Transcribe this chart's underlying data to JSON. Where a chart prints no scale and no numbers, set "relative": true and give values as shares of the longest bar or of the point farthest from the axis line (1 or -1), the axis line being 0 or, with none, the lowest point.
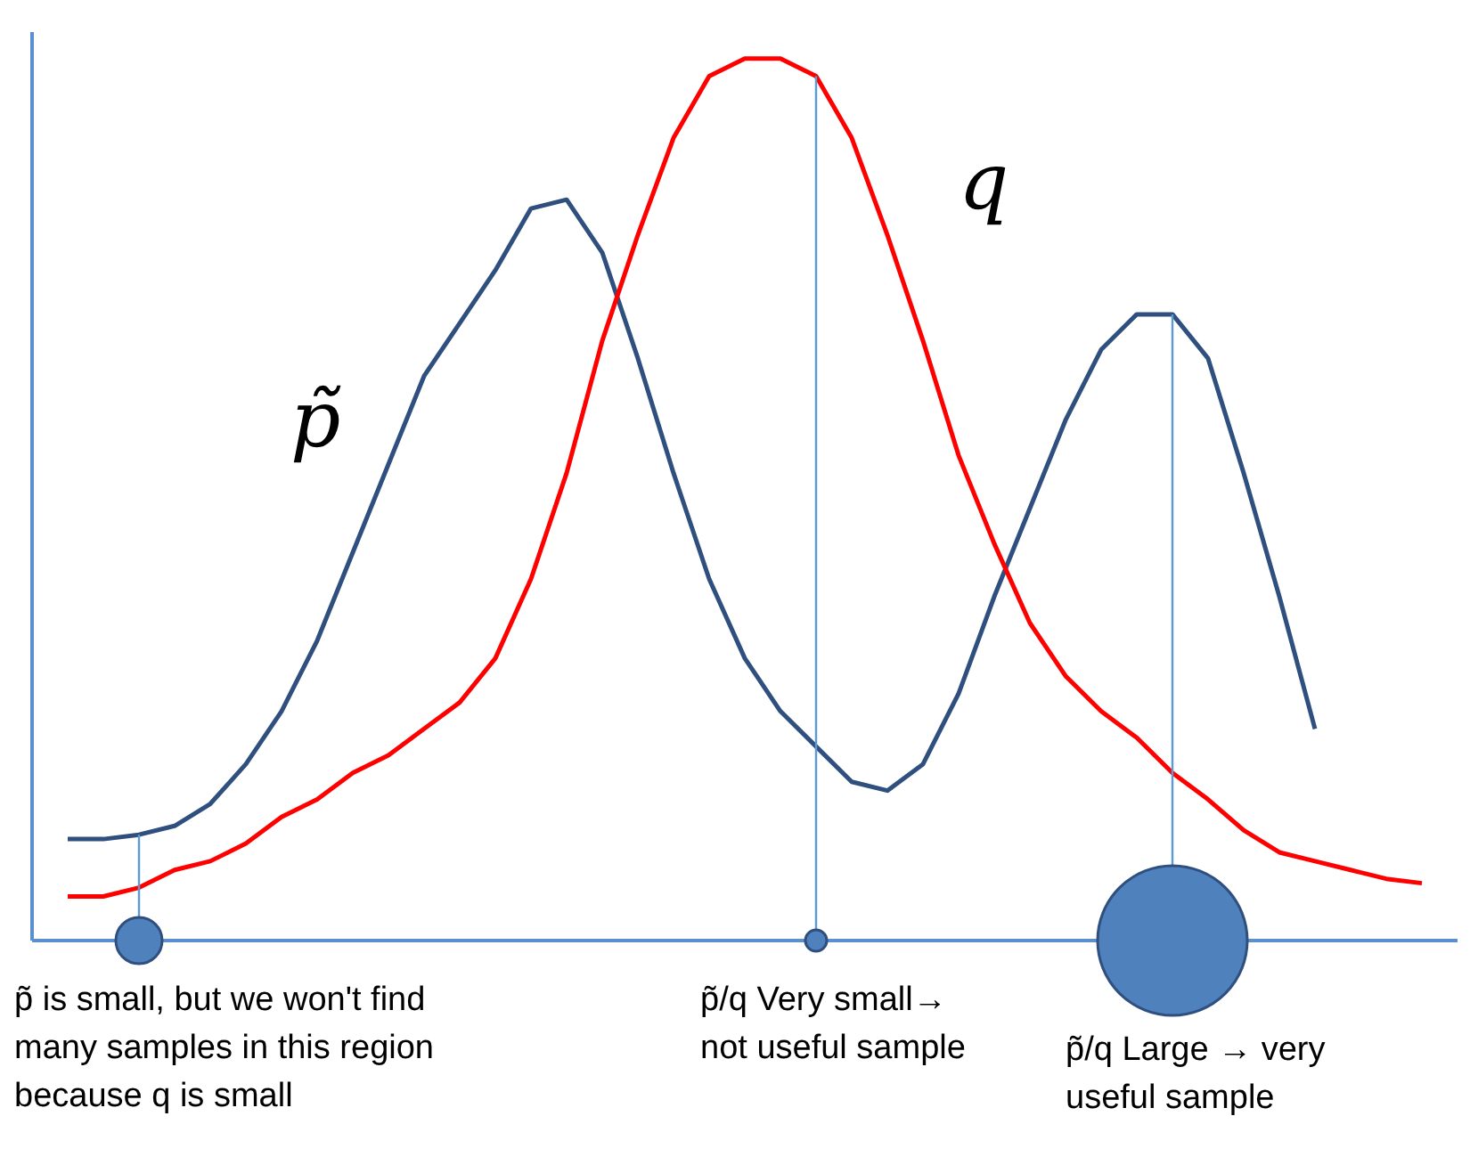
{
  "chart_data": {
    "type": "line",
    "relative": true,
    "legend": false,
    "grid": false,
    "marker": "none",
    "categories": [
      null,
      null,
      null,
      null,
      null,
      null,
      null,
      null,
      null,
      null,
      null,
      null,
      null,
      null,
      null,
      null,
      null,
      null,
      null,
      null,
      null,
      null,
      null,
      null,
      null,
      null,
      null,
      null,
      null,
      null,
      null,
      null,
      null,
      null,
      null,
      null,
      null,
      null,
      null,
      null,
      null
    ],
    "series": [
      {
        "name": "p̃",
        "color": "#2f4f7f",
        "values": [
          null,
          0.115,
          0.115,
          0.12,
          0.13,
          0.155,
          0.2,
          0.26,
          0.34,
          0.44,
          0.54,
          0.64,
          0.7,
          0.76,
          0.83,
          0.84,
          0.78,
          0.66,
          0.53,
          0.41,
          0.32,
          0.26,
          0.22,
          0.18,
          0.17,
          0.2,
          0.28,
          0.39,
          0.49,
          0.59,
          0.67,
          0.71,
          0.71,
          0.66,
          0.53,
          0.39,
          0.24,
          null,
          null,
          null,
          null
        ]
      },
      {
        "name": "q",
        "color": "#ff0000",
        "values": [
          null,
          0.05,
          0.05,
          0.06,
          0.08,
          0.09,
          0.11,
          0.14,
          0.16,
          0.19,
          0.21,
          0.24,
          0.27,
          0.32,
          0.41,
          0.53,
          0.68,
          0.8,
          0.91,
          0.98,
          1,
          1,
          0.98,
          0.91,
          0.8,
          0.68,
          0.55,
          0.45,
          0.36,
          0.3,
          0.26,
          0.23,
          0.19,
          0.16,
          0.125,
          0.1,
          0.09,
          0.08,
          0.07,
          0.065,
          null
        ]
      }
    ],
    "annotations": [
      "p̃ is small, but we won't find many samples in this region because q is small",
      "p̃/q Very small→ not useful sample",
      "p̃/q Large → very useful sample"
    ]
  }
}
